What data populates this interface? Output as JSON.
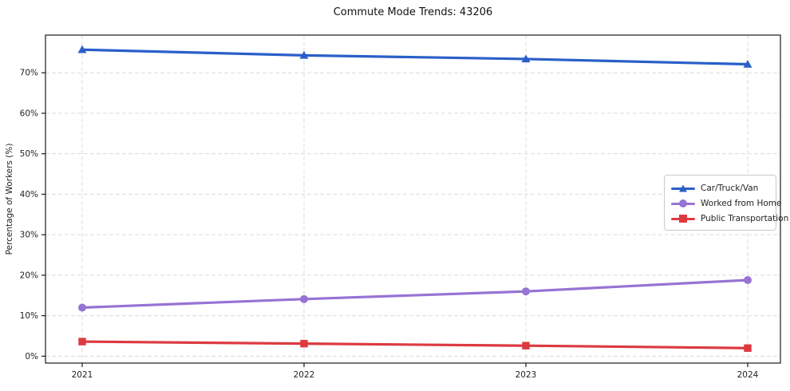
{
  "title": "Commute Mode Trends: 43206",
  "chart_data": {
    "type": "line",
    "title": "Commute Mode Trends: 43206",
    "xlabel": "",
    "ylabel": "Percentage of Workers (%)",
    "categories": [
      "2021",
      "2022",
      "2023",
      "2024"
    ],
    "series": [
      {
        "name": "Car/Truck/Van",
        "color": "#2a5fc9",
        "marker": "triangle",
        "values": [
          75.7,
          74.3,
          73.4,
          72.1
        ]
      },
      {
        "name": "Worked from Home",
        "color": "#9673d5",
        "marker": "circle",
        "values": [
          12.0,
          14.1,
          16.0,
          18.8
        ]
      },
      {
        "name": "Public Transportation",
        "color": "#dc3a40",
        "marker": "square",
        "values": [
          3.6,
          3.1,
          2.6,
          2.0
        ]
      }
    ],
    "ylim": [
      -1.7,
      79.3
    ],
    "yticks": [
      0,
      10,
      20,
      30,
      40,
      50,
      60,
      70
    ],
    "ytick_labels": [
      "0%",
      "10%",
      "20%",
      "30%",
      "40%",
      "50%",
      "60%",
      "70%"
    ],
    "grid": true,
    "grid_style": "dashed",
    "legend_position": "center-right",
    "colors": {
      "grid": "#dcdcdc",
      "spine": "#1a1a1a",
      "tick_text": "#1f1f1f"
    }
  }
}
